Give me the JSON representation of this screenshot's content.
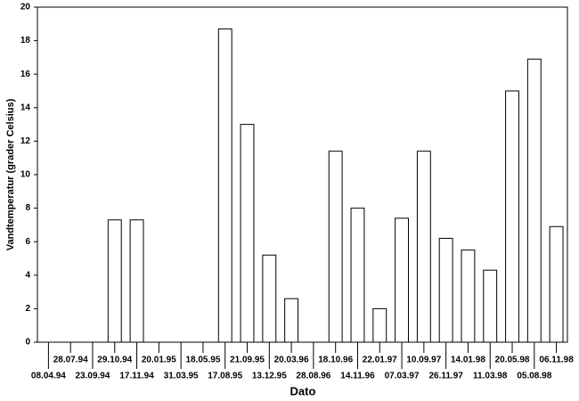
{
  "chart_data": {
    "type": "bar",
    "x_label": "Dato",
    "y_label": "Vandtemperatur (grader Celsius)",
    "categories": [
      "08.04.94",
      "28.07.94",
      "23.09.94",
      "29.10.94",
      "17.11.94",
      "20.01.95",
      "31.03.95",
      "18.05.95",
      "17.08.95",
      "21.09.95",
      "13.12.95",
      "20.03.96",
      "28.08.96",
      "18.10.96",
      "14.11.96",
      "22.01.97",
      "07.03.97",
      "10.09.97",
      "26.11.97",
      "14.01.98",
      "11.03.98",
      "20.05.98",
      "05.08.98",
      "06.11.98"
    ],
    "values": [
      null,
      null,
      null,
      7.3,
      7.3,
      null,
      null,
      null,
      18.7,
      13,
      5.2,
      2.6,
      null,
      11.4,
      8,
      2,
      7.4,
      11.4,
      6.2,
      5.5,
      4.3,
      15,
      16.9,
      6.9
    ],
    "color": "#ffffff",
    "ylim": [
      0,
      20
    ],
    "yticks": [
      0,
      2,
      4,
      6,
      8,
      10,
      12,
      14,
      16,
      18,
      20
    ]
  }
}
